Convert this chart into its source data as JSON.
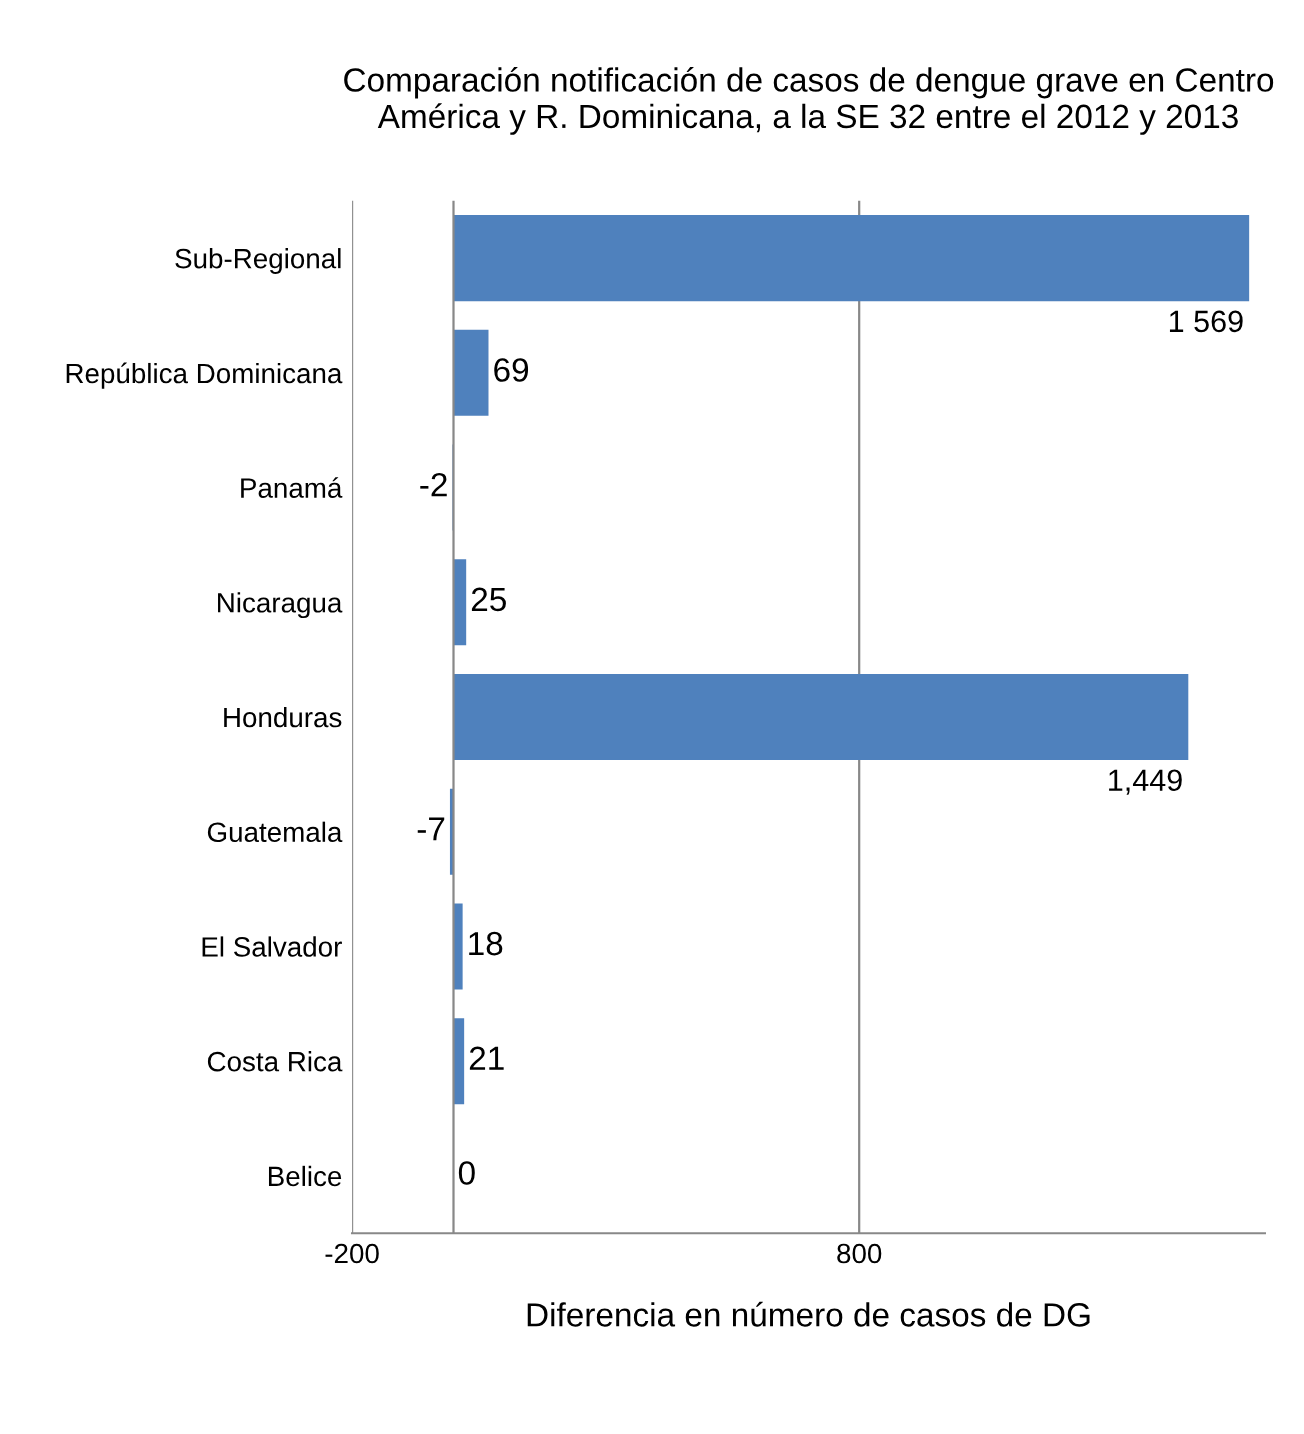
{
  "chart_data": {
    "type": "bar",
    "orientation": "horizontal",
    "title": "Comparación notificación de casos de dengue grave en Centro América y R. Dominicana, a la SE 32 entre el 2012 y 2013",
    "xlabel": "Diferencia en número de casos de DG",
    "categories": [
      "Sub-Regional",
      "República Dominicana",
      "Panamá",
      "Nicaragua",
      "Honduras",
      "Guatemala",
      "El Salvador",
      "Costa Rica",
      "Belice"
    ],
    "values": [
      1569,
      69,
      -2,
      25,
      1449,
      -7,
      18,
      21,
      0
    ],
    "value_labels": [
      "1 569",
      "69",
      "-2",
      "25",
      "1,449",
      "-7",
      "18",
      "21",
      "0"
    ],
    "color": "#4f81bd",
    "xlim": [
      -200,
      1600
    ],
    "xticks": [
      -200,
      800
    ],
    "grid": "x"
  }
}
